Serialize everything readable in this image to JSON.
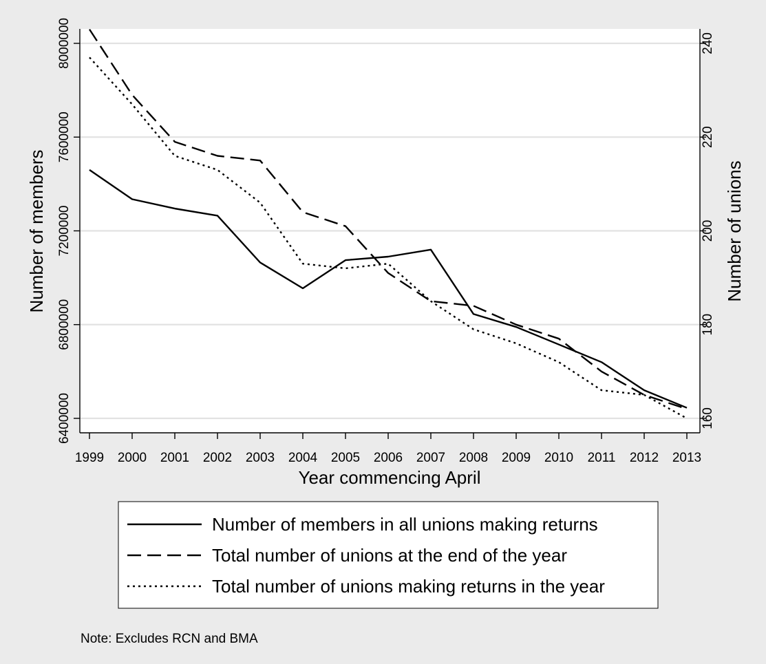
{
  "chart_data": {
    "type": "line",
    "title": "",
    "xlabel": "Year commencing April",
    "ylabel": "Number of members",
    "y2label": "Number of unions",
    "x": [
      1999,
      2000,
      2001,
      2002,
      2003,
      2004,
      2005,
      2006,
      2007,
      2008,
      2009,
      2010,
      2011,
      2012,
      2013
    ],
    "xticks": [
      "1999",
      "2000",
      "2001",
      "2002",
      "2003",
      "2004",
      "2005",
      "2006",
      "2007",
      "2008",
      "2009",
      "2010",
      "2011",
      "2012",
      "2013"
    ],
    "ylim": [
      6400000,
      8000000
    ],
    "yticks": [
      "6400000",
      "6800000",
      "7200000",
      "7600000",
      "8000000"
    ],
    "y2lim": [
      160,
      240
    ],
    "y2ticks": [
      "160",
      "180",
      "200",
      "220",
      "240"
    ],
    "grid": "horizontal",
    "legend_position": "bottom",
    "series": [
      {
        "name": "Number of members in all unions making returns",
        "axis": "left",
        "dash": "solid",
        "values": [
          7460000,
          7335000,
          7295000,
          7265000,
          7065000,
          6955000,
          7075000,
          7090000,
          7120000,
          6845000,
          6790000,
          6715000,
          6640000,
          6520000,
          6445000
        ]
      },
      {
        "name": "Total number of unions at the end of the year",
        "axis": "right",
        "dash": "dashed",
        "values": [
          243,
          229,
          219,
          216,
          215,
          204,
          201,
          191,
          185,
          184,
          180,
          177,
          170,
          165,
          162
        ]
      },
      {
        "name": "Total number of unions making returns in the year",
        "axis": "right",
        "dash": "dotted",
        "values": [
          237,
          227,
          216,
          213,
          206,
          193,
          192,
          193,
          185,
          179,
          176,
          172,
          166,
          165,
          160
        ]
      }
    ],
    "note": "Note: Excludes RCN and BMA"
  }
}
